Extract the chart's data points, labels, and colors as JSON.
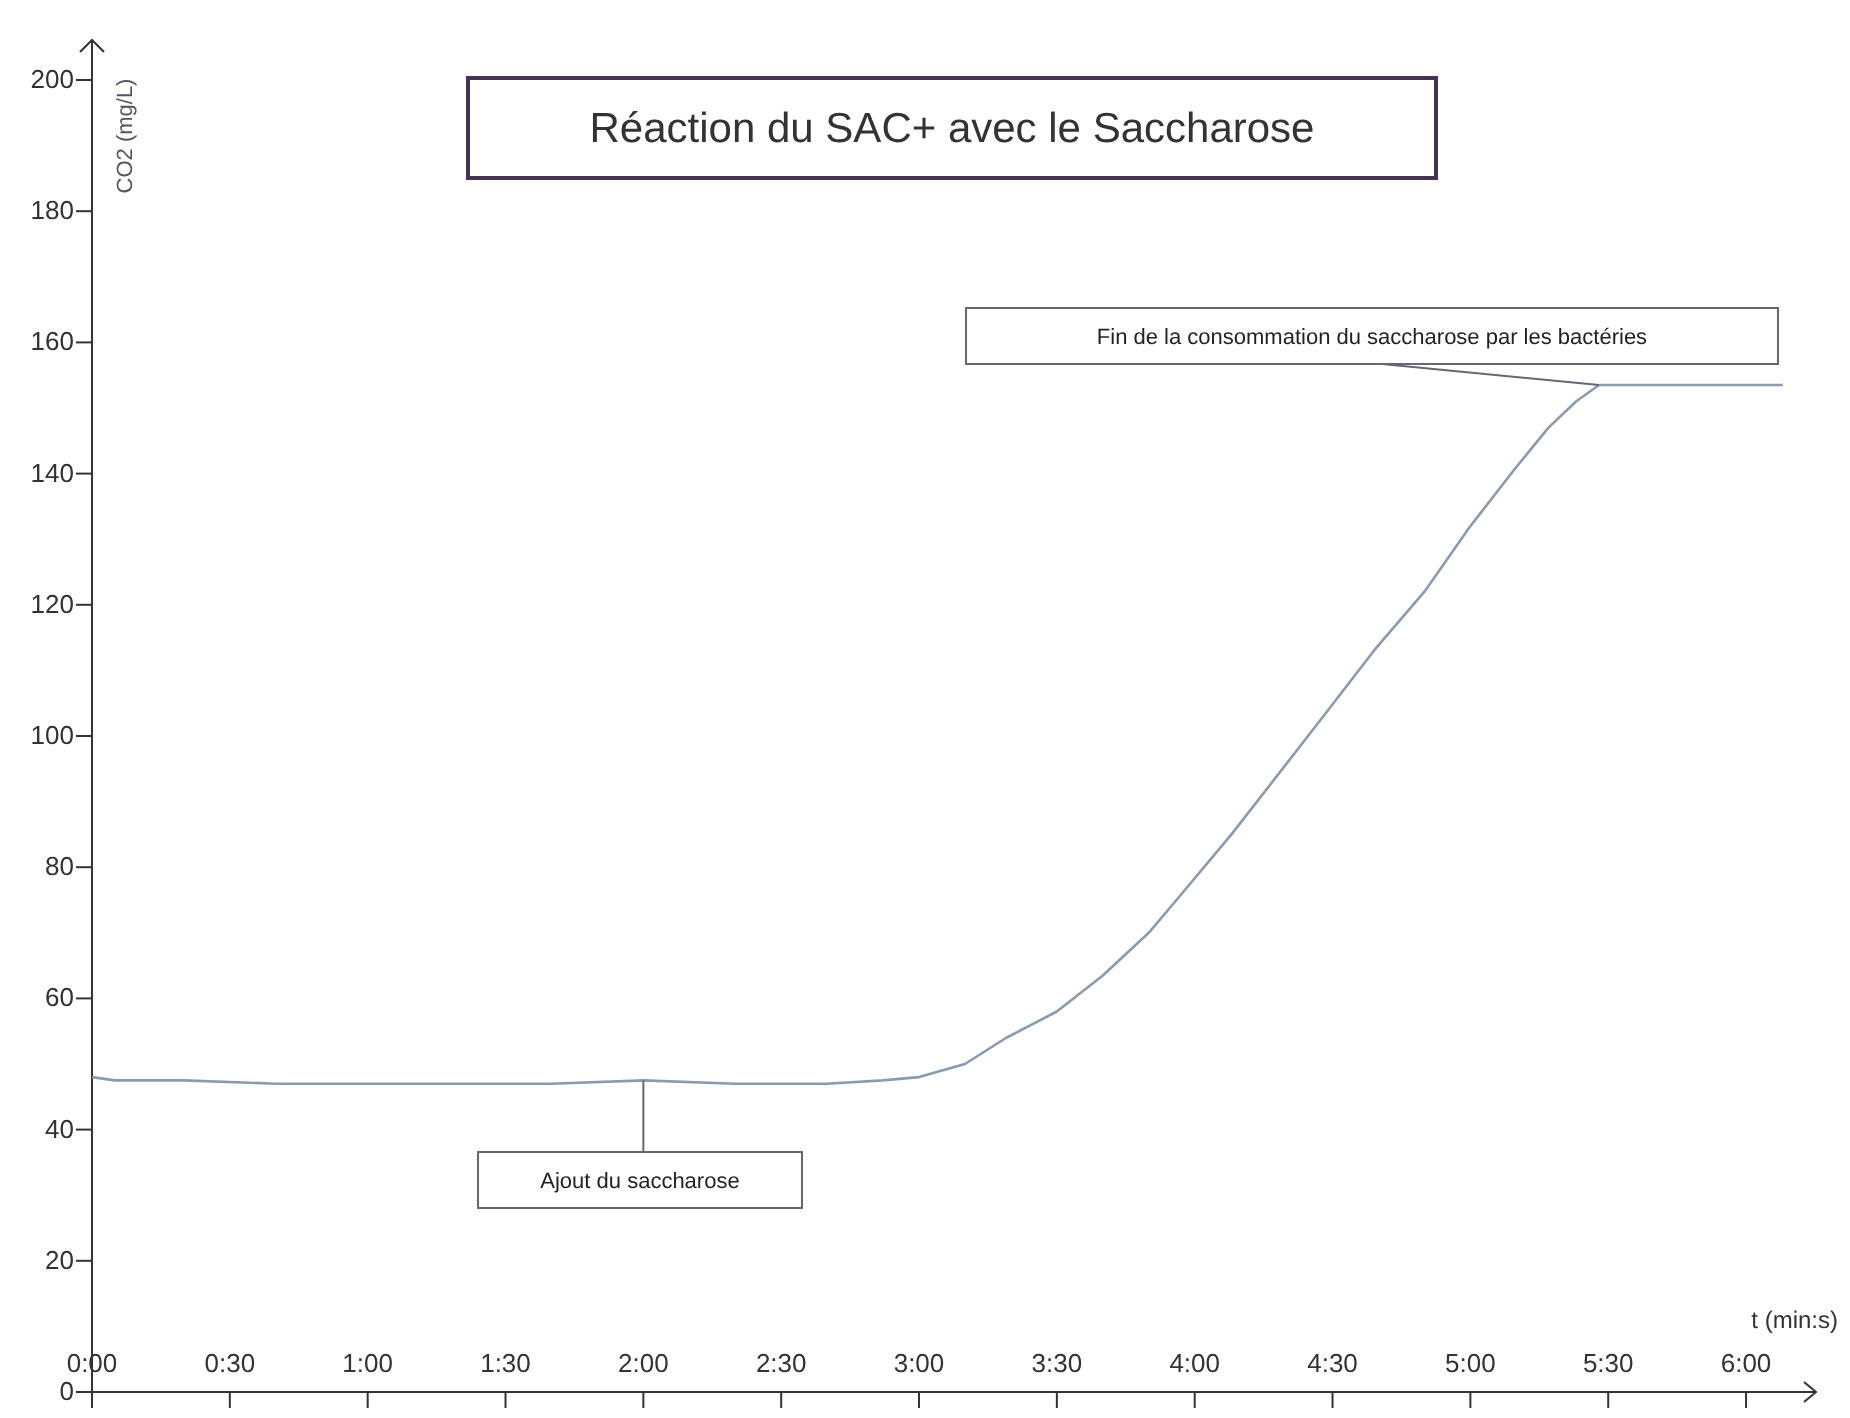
{
  "chart_data": {
    "type": "line",
    "title": "Réaction du SAC+ avec le Saccharose",
    "xlabel": "t (min:s)",
    "ylabel": "CO2 (mg/L)",
    "x": [
      0,
      5,
      20,
      40,
      60,
      80,
      100,
      120,
      140,
      160,
      172,
      180,
      190,
      199,
      210,
      220,
      230,
      237,
      248,
      258,
      268,
      279,
      290,
      300,
      310,
      317,
      323,
      328,
      340,
      355,
      368
    ],
    "series": [
      {
        "color": "#8a9bb0",
        "values": [
          48,
          47.5,
          47.5,
          47,
          47,
          47,
          47,
          47.5,
          47,
          47,
          47.5,
          48,
          50,
          54,
          58,
          63.5,
          70,
          75.8,
          85,
          94,
          103,
          113,
          122,
          132,
          141,
          147,
          151,
          153.5,
          153.5,
          153.5,
          153.5
        ]
      }
    ],
    "xlim": [
      0,
      370
    ],
    "ylim": [
      0,
      200
    ],
    "xticks": [
      {
        "value": 0,
        "label": "0:00"
      },
      {
        "value": 30,
        "label": "0:30"
      },
      {
        "value": 60,
        "label": "1:00"
      },
      {
        "value": 90,
        "label": "1:30"
      },
      {
        "value": 120,
        "label": "2:00"
      },
      {
        "value": 150,
        "label": "2:30"
      },
      {
        "value": 180,
        "label": "3:00"
      },
      {
        "value": 210,
        "label": "3:30"
      },
      {
        "value": 240,
        "label": "4:00"
      },
      {
        "value": 270,
        "label": "4:30"
      },
      {
        "value": 300,
        "label": "5:00"
      },
      {
        "value": 330,
        "label": "5:30"
      },
      {
        "value": 360,
        "label": "6:00"
      }
    ],
    "yticks": [
      0,
      20,
      40,
      60,
      80,
      100,
      120,
      140,
      160,
      180,
      200
    ],
    "annotations": [
      {
        "text": "Ajout du saccharose",
        "x": 120,
        "y": 47.5
      },
      {
        "text": "Fin de la consommation du saccharose par les bactéries",
        "x": 328,
        "y": 153.5
      }
    ],
    "grid": false,
    "marker": "none",
    "line_style": "solid"
  }
}
